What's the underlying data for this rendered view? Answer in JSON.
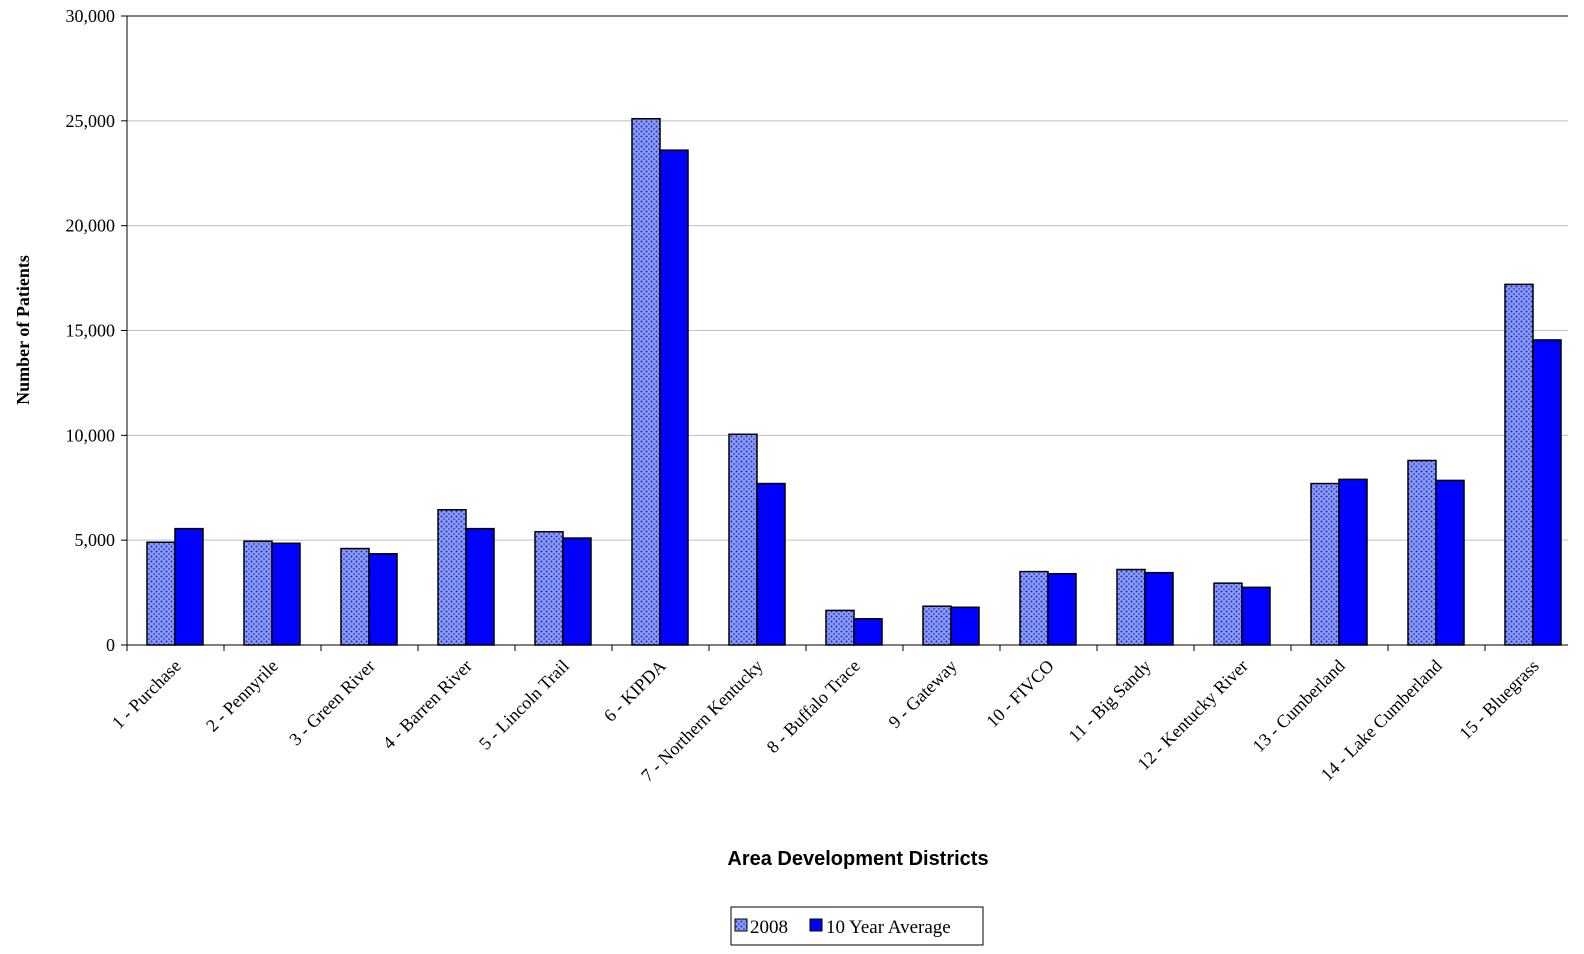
{
  "chart_data": {
    "type": "bar",
    "title": "",
    "xlabel": "Area Development Districts",
    "ylabel": "Number of Patients",
    "ylim": [
      0,
      30000
    ],
    "yticks": [
      0,
      5000,
      10000,
      15000,
      20000,
      25000,
      30000
    ],
    "ytick_labels": [
      "0",
      "5,000",
      "10,000",
      "15,000",
      "20,000",
      "25,000",
      "30,000"
    ],
    "grid": true,
    "legend_position": "bottom-center",
    "categories": [
      "1 - Purchase",
      "2 - Pennyrile",
      "3 - Green River",
      "4 - Barren River",
      "5 - Lincoln Trail",
      "6 - KIPDA",
      "7 - Northern Kentucky",
      "8 - Buffalo Trace",
      "9 - Gateway",
      "10 - FIVCO",
      "11 - Big Sandy",
      "12 - Kentucky River",
      "13 - Cumberland",
      "14 - Lake Cumberland",
      "15 - Bluegrass"
    ],
    "series": [
      {
        "name": "2008",
        "color": "#8c9cf2",
        "dot_color": "#1a2ad0",
        "values": [
          4900,
          4950,
          4600,
          6450,
          5400,
          25100,
          10050,
          1650,
          1850,
          3500,
          3600,
          2950,
          7700,
          8800,
          17200
        ]
      },
      {
        "name": "10 Year Average",
        "color": "#0000ff",
        "values": [
          5550,
          4850,
          4350,
          5550,
          5100,
          23600,
          7700,
          1250,
          1800,
          3400,
          3450,
          2750,
          7900,
          7850,
          14550
        ]
      }
    ]
  }
}
